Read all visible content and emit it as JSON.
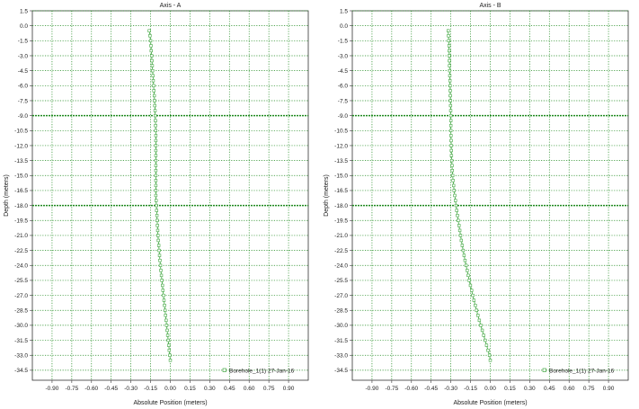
{
  "chart_data": [
    {
      "type": "line",
      "title": "Axis - A",
      "xlabel": "Absolute Position (meters)",
      "ylabel": "Depth (meters)",
      "xlim": [
        -1.05,
        1.05
      ],
      "ylim": [
        1.5,
        -35.5
      ],
      "xticks": [
        "-0.90",
        "-0.75",
        "-0.60",
        "-0.45",
        "-0.30",
        "-0.15",
        "0.00",
        "0.15",
        "0.30",
        "0.45",
        "0.60",
        "0.75",
        "0.90"
      ],
      "yticks": [
        "1.5",
        "0.0",
        "-1.5",
        "-3.0",
        "-4.5",
        "-6.0",
        "-7.5",
        "-9.0",
        "-10.5",
        "-12.0",
        "-13.5",
        "-15.0",
        "-16.5",
        "-18.0",
        "-19.5",
        "-21.0",
        "-22.5",
        "-24.0",
        "-25.5",
        "-27.0",
        "-28.5",
        "-30.0",
        "-31.5",
        "-33.0",
        "-34.5"
      ],
      "grid": true,
      "legend_position": "bottom-right",
      "series": [
        {
          "name": "Borehole_1(1) 27-Jan-16",
          "color": "#3fa63f",
          "marker": "square",
          "points": [
            [
              -0.16,
              -0.5
            ],
            [
              -0.155,
              -1.0
            ],
            [
              -0.15,
              -1.5
            ],
            [
              -0.147,
              -2.0
            ],
            [
              -0.145,
              -2.5
            ],
            [
              -0.142,
              -3.0
            ],
            [
              -0.14,
              -3.5
            ],
            [
              -0.137,
              -4.0
            ],
            [
              -0.135,
              -4.5
            ],
            [
              -0.132,
              -5.0
            ],
            [
              -0.13,
              -5.5
            ],
            [
              -0.127,
              -6.0
            ],
            [
              -0.125,
              -6.5
            ],
            [
              -0.122,
              -7.0
            ],
            [
              -0.12,
              -7.5
            ],
            [
              -0.118,
              -8.0
            ],
            [
              -0.116,
              -8.5
            ],
            [
              -0.115,
              -9.0
            ],
            [
              -0.113,
              -9.5
            ],
            [
              -0.112,
              -10.0
            ],
            [
              -0.111,
              -10.5
            ],
            [
              -0.11,
              -11.0
            ],
            [
              -0.11,
              -11.5
            ],
            [
              -0.11,
              -12.0
            ],
            [
              -0.11,
              -12.5
            ],
            [
              -0.11,
              -13.0
            ],
            [
              -0.11,
              -13.5
            ],
            [
              -0.11,
              -14.0
            ],
            [
              -0.11,
              -14.5
            ],
            [
              -0.11,
              -15.0
            ],
            [
              -0.11,
              -15.5
            ],
            [
              -0.11,
              -16.0
            ],
            [
              -0.11,
              -16.5
            ],
            [
              -0.11,
              -17.0
            ],
            [
              -0.108,
              -17.5
            ],
            [
              -0.106,
              -18.0
            ],
            [
              -0.104,
              -18.5
            ],
            [
              -0.102,
              -19.0
            ],
            [
              -0.1,
              -19.5
            ],
            [
              -0.098,
              -20.0
            ],
            [
              -0.096,
              -20.5
            ],
            [
              -0.094,
              -21.0
            ],
            [
              -0.091,
              -21.5
            ],
            [
              -0.088,
              -22.0
            ],
            [
              -0.085,
              -22.5
            ],
            [
              -0.082,
              -23.0
            ],
            [
              -0.079,
              -23.5
            ],
            [
              -0.075,
              -24.0
            ],
            [
              -0.072,
              -24.5
            ],
            [
              -0.068,
              -25.0
            ],
            [
              -0.064,
              -25.5
            ],
            [
              -0.06,
              -26.0
            ],
            [
              -0.056,
              -26.5
            ],
            [
              -0.052,
              -27.0
            ],
            [
              -0.048,
              -27.5
            ],
            [
              -0.044,
              -28.0
            ],
            [
              -0.04,
              -28.5
            ],
            [
              -0.036,
              -29.0
            ],
            [
              -0.032,
              -29.5
            ],
            [
              -0.028,
              -30.0
            ],
            [
              -0.024,
              -30.5
            ],
            [
              -0.02,
              -31.0
            ],
            [
              -0.016,
              -31.5
            ],
            [
              -0.012,
              -32.0
            ],
            [
              -0.008,
              -32.5
            ],
            [
              -0.004,
              -33.0
            ],
            [
              0.0,
              -33.5
            ]
          ]
        }
      ]
    },
    {
      "type": "line",
      "title": "Axis - B",
      "xlabel": "Absolute Position (meters)",
      "ylabel": "Depth (meters)",
      "xlim": [
        -1.05,
        1.05
      ],
      "ylim": [
        1.5,
        -35.5
      ],
      "xticks": [
        "-0.90",
        "-0.75",
        "-0.60",
        "-0.45",
        "-0.30",
        "-0.15",
        "0.00",
        "0.15",
        "0.30",
        "0.45",
        "0.60",
        "0.75",
        "0.90"
      ],
      "yticks": [
        "1.5",
        "0.0",
        "-1.5",
        "-3.0",
        "-4.5",
        "-6.0",
        "-7.5",
        "-9.0",
        "-10.5",
        "-12.0",
        "-13.5",
        "-15.0",
        "-16.5",
        "-18.0",
        "-19.5",
        "-21.0",
        "-22.5",
        "-24.0",
        "-25.5",
        "-27.0",
        "-28.5",
        "-30.0",
        "-31.5",
        "-33.0",
        "-34.5"
      ],
      "grid": true,
      "legend_position": "bottom-right",
      "series": [
        {
          "name": "Borehole_1(1) 27-Jan-16",
          "color": "#3fa63f",
          "marker": "square",
          "points": [
            [
              -0.32,
              -0.5
            ],
            [
              -0.318,
              -1.0
            ],
            [
              -0.316,
              -1.5
            ],
            [
              -0.314,
              -2.0
            ],
            [
              -0.313,
              -2.5
            ],
            [
              -0.312,
              -3.0
            ],
            [
              -0.311,
              -3.5
            ],
            [
              -0.31,
              -4.0
            ],
            [
              -0.309,
              -4.5
            ],
            [
              -0.308,
              -5.0
            ],
            [
              -0.307,
              -5.5
            ],
            [
              -0.306,
              -6.0
            ],
            [
              -0.305,
              -6.5
            ],
            [
              -0.304,
              -7.0
            ],
            [
              -0.303,
              -7.5
            ],
            [
              -0.302,
              -8.0
            ],
            [
              -0.301,
              -8.5
            ],
            [
              -0.3,
              -9.0
            ],
            [
              -0.3,
              -9.5
            ],
            [
              -0.3,
              -10.0
            ],
            [
              -0.3,
              -10.5
            ],
            [
              -0.299,
              -11.0
            ],
            [
              -0.298,
              -11.5
            ],
            [
              -0.297,
              -12.0
            ],
            [
              -0.296,
              -12.5
            ],
            [
              -0.295,
              -13.0
            ],
            [
              -0.293,
              -13.5
            ],
            [
              -0.291,
              -14.0
            ],
            [
              -0.289,
              -14.5
            ],
            [
              -0.286,
              -15.0
            ],
            [
              -0.283,
              -15.5
            ],
            [
              -0.279,
              -16.0
            ],
            [
              -0.275,
              -16.5
            ],
            [
              -0.27,
              -17.0
            ],
            [
              -0.265,
              -17.5
            ],
            [
              -0.26,
              -18.0
            ],
            [
              -0.255,
              -18.5
            ],
            [
              -0.25,
              -19.0
            ],
            [
              -0.244,
              -19.5
            ],
            [
              -0.238,
              -20.0
            ],
            [
              -0.232,
              -20.5
            ],
            [
              -0.226,
              -21.0
            ],
            [
              -0.22,
              -21.5
            ],
            [
              -0.213,
              -22.0
            ],
            [
              -0.206,
              -22.5
            ],
            [
              -0.199,
              -23.0
            ],
            [
              -0.192,
              -23.5
            ],
            [
              -0.184,
              -24.0
            ],
            [
              -0.176,
              -24.5
            ],
            [
              -0.168,
              -25.0
            ],
            [
              -0.16,
              -25.5
            ],
            [
              -0.151,
              -26.0
            ],
            [
              -0.142,
              -26.5
            ],
            [
              -0.133,
              -27.0
            ],
            [
              -0.124,
              -27.5
            ],
            [
              -0.114,
              -28.0
            ],
            [
              -0.104,
              -28.5
            ],
            [
              -0.094,
              -29.0
            ],
            [
              -0.083,
              -29.5
            ],
            [
              -0.072,
              -30.0
            ],
            [
              -0.061,
              -30.5
            ],
            [
              -0.05,
              -31.0
            ],
            [
              -0.039,
              -31.5
            ],
            [
              -0.028,
              -32.0
            ],
            [
              -0.017,
              -32.5
            ],
            [
              -0.006,
              -33.0
            ],
            [
              0.0,
              -33.5
            ]
          ]
        }
      ]
    }
  ]
}
